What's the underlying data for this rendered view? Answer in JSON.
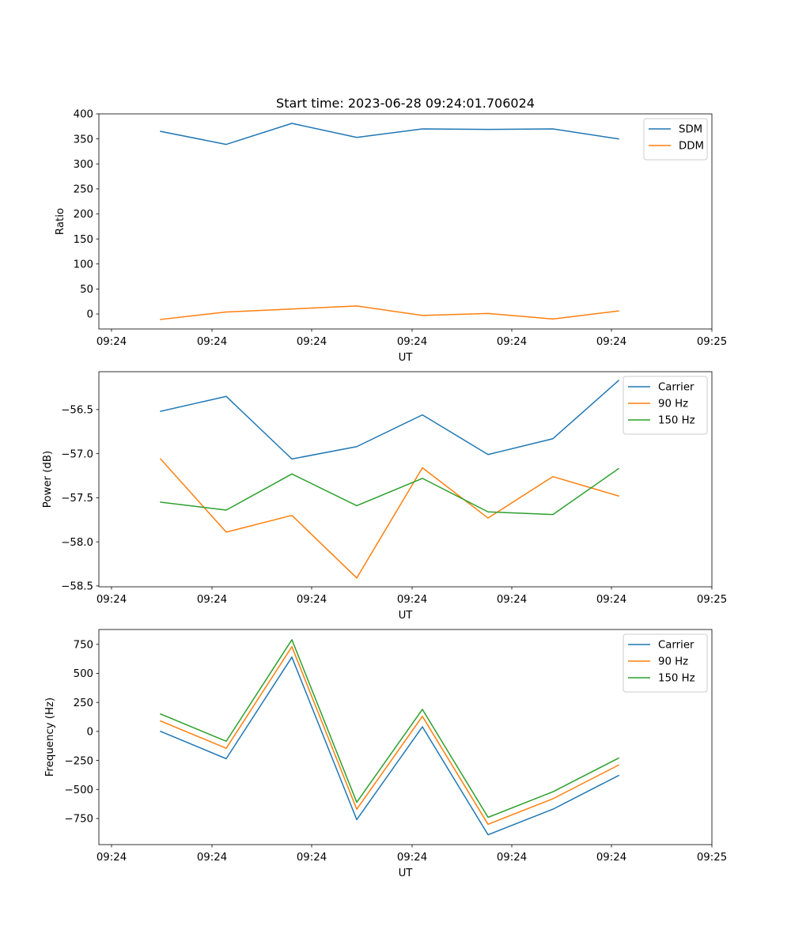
{
  "title": "Start time: 2023-06-28 09:24:01.706024",
  "colors": {
    "blue": "#1f77b4",
    "orange": "#ff7f0e",
    "green": "#2ca02c"
  },
  "chart_data": [
    {
      "type": "line",
      "title": "Start time: 2023-06-28 09:24:01.706024",
      "xlabel": "UT",
      "ylabel": "Ratio",
      "x_tick_labels": [
        "09:24",
        "09:24",
        "09:24",
        "09:24",
        "09:24",
        "09:24",
        "09:25"
      ],
      "y_ticks": [
        0,
        50,
        100,
        150,
        200,
        250,
        300,
        350,
        400
      ],
      "y_tick_labels": [
        "0",
        "50",
        "100",
        "150",
        "200",
        "250",
        "300",
        "350",
        "400"
      ],
      "ylim": [
        -30,
        400
      ],
      "legend_location": "upper right",
      "series": [
        {
          "name": "SDM",
          "color": "#1f77b4",
          "values": [
            365,
            339,
            381,
            353,
            370,
            369,
            370,
            350
          ]
        },
        {
          "name": "DDM",
          "color": "#ff7f0e",
          "values": [
            -11,
            4,
            10,
            16,
            -3,
            1,
            -10,
            6
          ]
        }
      ]
    },
    {
      "type": "line",
      "title": "",
      "xlabel": "UT",
      "ylabel": "Power (dB)",
      "x_tick_labels": [
        "09:24",
        "09:24",
        "09:24",
        "09:24",
        "09:24",
        "09:24",
        "09:25"
      ],
      "y_ticks": [
        -56.5,
        -57.0,
        -57.5,
        -58.0,
        -58.5
      ],
      "y_tick_labels": [
        "−56.5",
        "−57.0",
        "−57.5",
        "−58.0",
        "−58.5"
      ],
      "ylim": [
        -58.51,
        -56.07
      ],
      "legend_location": "upper right",
      "series": [
        {
          "name": "Carrier",
          "color": "#1f77b4",
          "values": [
            -56.52,
            -56.35,
            -57.06,
            -56.92,
            -56.56,
            -57.01,
            -56.83,
            -56.17
          ]
        },
        {
          "name": "90 Hz",
          "color": "#ff7f0e",
          "values": [
            -57.06,
            -57.89,
            -57.7,
            -58.41,
            -57.16,
            -57.73,
            -57.26,
            -57.48
          ]
        },
        {
          "name": "150 Hz",
          "color": "#2ca02c",
          "values": [
            -57.55,
            -57.64,
            -57.23,
            -57.59,
            -57.28,
            -57.66,
            -57.69,
            -57.17
          ]
        }
      ]
    },
    {
      "type": "line",
      "title": "",
      "xlabel": "UT",
      "ylabel": "Frequency (Hz)",
      "x_tick_labels": [
        "09:24",
        "09:24",
        "09:24",
        "09:24",
        "09:24",
        "09:24",
        "09:25"
      ],
      "y_ticks": [
        750,
        500,
        250,
        0,
        -250,
        -500,
        -750
      ],
      "y_tick_labels": [
        "750",
        "500",
        "250",
        "0",
        "−250",
        "−500",
        "−750"
      ],
      "ylim": [
        -975,
        878
      ],
      "legend_location": "upper right",
      "series": [
        {
          "name": "Carrier",
          "color": "#1f77b4",
          "values": [
            0,
            -235,
            640,
            -760,
            40,
            -890,
            -670,
            -380
          ]
        },
        {
          "name": "90 Hz",
          "color": "#ff7f0e",
          "values": [
            90,
            -145,
            730,
            -670,
            130,
            -800,
            -580,
            -290
          ]
        },
        {
          "name": "150 Hz",
          "color": "#2ca02c",
          "values": [
            150,
            -85,
            790,
            -610,
            190,
            -740,
            -520,
            -230
          ]
        }
      ]
    }
  ]
}
